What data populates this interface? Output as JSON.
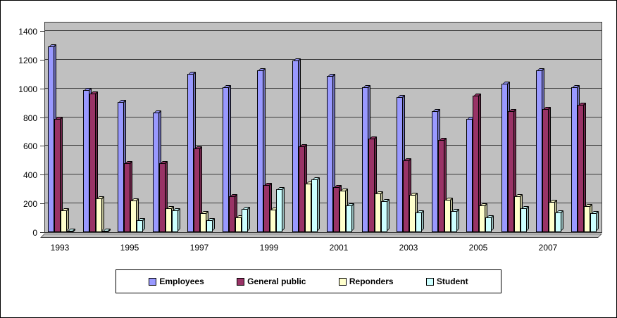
{
  "chart_data": {
    "type": "bar",
    "categories": [
      "1993",
      "1994",
      "1995",
      "1996",
      "1997",
      "1998",
      "1999",
      "2000",
      "2001",
      "2002",
      "2003",
      "2004",
      "2005",
      "2006",
      "2007",
      "2008"
    ],
    "x_tick_labels_visible": [
      "1993",
      "1995",
      "1997",
      "1999",
      "2001",
      "2003",
      "2005",
      "2007"
    ],
    "series": [
      {
        "name": "Employees",
        "color": "#9999FF",
        "values": [
          1290,
          990,
          905,
          830,
          1100,
          1010,
          1125,
          1195,
          1085,
          1010,
          940,
          840,
          790,
          1035,
          1125,
          1010
        ]
      },
      {
        "name": "General public",
        "color": "#993366",
        "values": [
          790,
          965,
          480,
          480,
          585,
          250,
          330,
          595,
          315,
          650,
          500,
          640,
          950,
          840,
          855,
          885
        ]
      },
      {
        "name": "Reponders",
        "color": "#FFFFCC",
        "values": [
          150,
          235,
          220,
          165,
          130,
          105,
          155,
          340,
          290,
          270,
          260,
          225,
          185,
          250,
          210,
          180
        ]
      },
      {
        "name": "Student",
        "color": "#CCFFFF",
        "values": [
          8,
          10,
          85,
          150,
          85,
          160,
          300,
          365,
          185,
          215,
          135,
          145,
          105,
          165,
          135,
          130
        ]
      }
    ],
    "title": "",
    "xlabel": "",
    "ylabel": "",
    "ylim": [
      0,
      1400
    ],
    "ytick_step": 200,
    "yticks": [
      0,
      200,
      400,
      600,
      800,
      1000,
      1200,
      1400
    ],
    "grid": "horizontal",
    "plot_background": "#C0C0C0",
    "gridline_color": "#3a3a3a",
    "legend_position": "bottom"
  }
}
